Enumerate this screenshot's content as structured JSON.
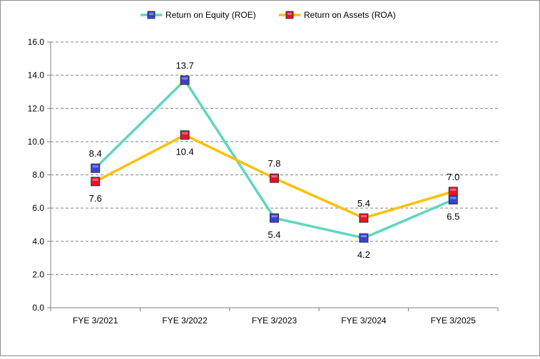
{
  "chart_data": {
    "type": "line",
    "categories": [
      "FYE 3/2021",
      "FYE 3/2022",
      "FYE 3/2023",
      "FYE 3/2024",
      "FYE 3/2025"
    ],
    "series": [
      {
        "name": "Return on Equity (ROE)",
        "values": [
          8.4,
          13.7,
          5.4,
          4.2,
          6.5
        ],
        "labels": [
          "8.4",
          "13.7",
          "5.4",
          "4.2",
          "6.5"
        ],
        "line_color": "#5ed6c0",
        "marker_color": "#3b3fd6",
        "label_position": [
          "above",
          "above",
          "below",
          "below",
          "below"
        ]
      },
      {
        "name": "Return on Assets (ROA)",
        "values": [
          7.6,
          10.4,
          7.8,
          5.4,
          7.0
        ],
        "labels": [
          "7.6",
          "10.4",
          "7.8",
          "5.4",
          "7.0"
        ],
        "line_color": "#ffc000",
        "marker_color": "#e8112d",
        "label_position": [
          "below",
          "below",
          "above",
          "above",
          "above"
        ]
      }
    ],
    "ylim": [
      0,
      16
    ],
    "y_ticks": [
      "0.0",
      "2.0",
      "4.0",
      "6.0",
      "8.0",
      "10.0",
      "12.0",
      "14.0",
      "16.0"
    ],
    "y_tick_values": [
      0,
      2,
      4,
      6,
      8,
      10,
      12,
      14,
      16
    ],
    "grid": true,
    "legend_position": "top-center"
  }
}
